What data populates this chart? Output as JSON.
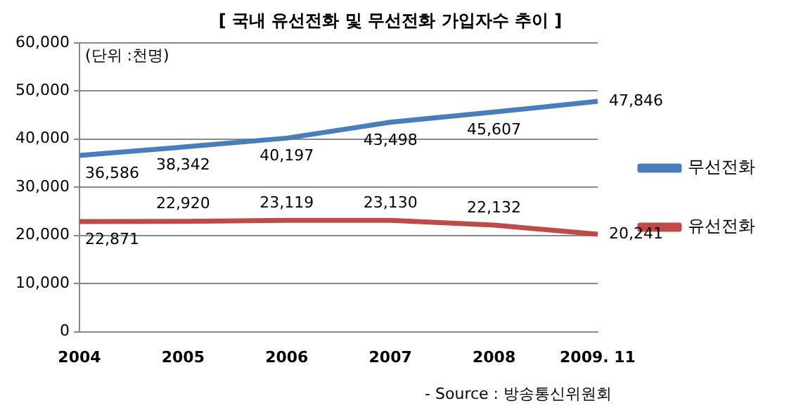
{
  "chart_data": {
    "type": "line",
    "title": "[ 국내 유선전화 및 무선전화 가입자수 추이 ]",
    "categories": [
      "2004",
      "2005",
      "2006",
      "2007",
      "2008",
      "2009. 11"
    ],
    "series": [
      {
        "name": "무선전화",
        "color": "#4a7ebb",
        "values": [
          36586,
          38342,
          40197,
          43498,
          45607,
          47846
        ],
        "value_labels": [
          "36,586",
          "38,342",
          "40,197",
          "43,498",
          "45,607",
          "47,846"
        ]
      },
      {
        "name": "유선전화",
        "color": "#be4b48",
        "values": [
          22871,
          22920,
          23119,
          23130,
          22132,
          20241
        ],
        "value_labels": [
          "22,871",
          "22,920",
          "23,119",
          "23,130",
          "22,132",
          "20,241"
        ]
      }
    ],
    "ylim": [
      0,
      60000
    ],
    "yticks": [
      0,
      {
        "value": 10000,
        "label": "10,000"
      },
      {
        "value": 20000,
        "label": "20,000"
      },
      {
        "value": 30000,
        "label": "30,000"
      },
      {
        "value": 40000,
        "label": "40,000"
      },
      {
        "value": 50000,
        "label": "50,000"
      },
      {
        "value": 60000,
        "label": "60,000"
      }
    ],
    "grid": "y",
    "legend": "right",
    "marker": "none",
    "line_style": "solid",
    "annotations": [
      "(단위 :천명)",
      "- Source : 방송통신위원회"
    ]
  }
}
